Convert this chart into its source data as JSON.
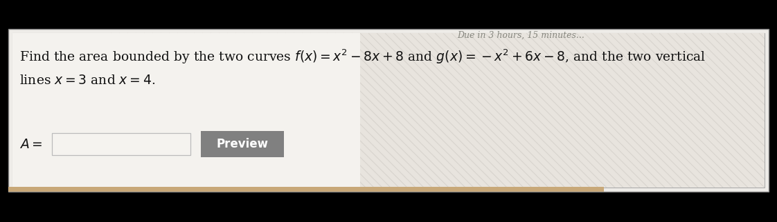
{
  "bg_outer": "#000000",
  "bg_card": "#eeece8",
  "bg_card_inner": "#f4f2ee",
  "card_border_outer": "#888888",
  "card_border_inner": "#aaaaaa",
  "hatch_color": "#d8d4ce",
  "hatch_bg": "#e8e4de",
  "header_text": "Due in 3 hours, 15 minutes...",
  "header_text_color": "#888880",
  "problem_line1": "Find the area bounded by the two curves $f(x) = x^2 - 8x + 8$ and $g(x) =  - x^2 + 6x - 8$, and the two vertical",
  "problem_line2": "lines $x = 3$ and $x = 4$.",
  "label_A": "$A =$",
  "input_box_color": "#f5f3ef",
  "input_box_border": "#bbbbbb",
  "button_text": "Preview",
  "button_bg": "#808080",
  "button_text_color": "#ffffff",
  "text_fontsize": 13.5,
  "header_fontsize": 9,
  "label_fontsize": 13.5,
  "tan_bar_color": "#c8a878"
}
